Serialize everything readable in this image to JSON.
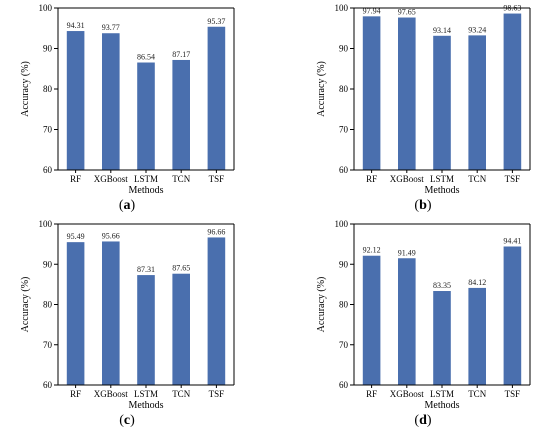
{
  "figure": {
    "bar_color": "#4a6fae",
    "panels": [
      {
        "label_open": "(",
        "label_letter": "a",
        "label_close": ")"
      },
      {
        "label_open": "(",
        "label_letter": "b",
        "label_close": ")"
      },
      {
        "label_open": "(",
        "label_letter": "c",
        "label_close": ")"
      },
      {
        "label_open": "(",
        "label_letter": "d",
        "label_close": ")"
      }
    ]
  },
  "chart_data": [
    {
      "type": "bar",
      "categories": [
        "RF",
        "XGBoost",
        "LSTM",
        "TCN",
        "TSF"
      ],
      "values": [
        94.31,
        93.77,
        86.54,
        87.17,
        95.37
      ],
      "data_labels": [
        "94.31",
        "93.77",
        "86.54",
        "87.17",
        "95.37"
      ],
      "xlabel": "Methods",
      "ylabel": "Accuracy (%)",
      "ylim": [
        60,
        100
      ],
      "yticks": [
        60,
        70,
        80,
        90,
        100
      ],
      "grid": false
    },
    {
      "type": "bar",
      "categories": [
        "RF",
        "XGBoost",
        "LSTM",
        "TCN",
        "TSF"
      ],
      "values": [
        97.94,
        97.65,
        93.14,
        93.24,
        98.63
      ],
      "data_labels": [
        "97.94",
        "97.65",
        "93.14",
        "93.24",
        "98.63"
      ],
      "xlabel": "Methods",
      "ylabel": "Accuracy (%)",
      "ylim": [
        60,
        100
      ],
      "yticks": [
        60,
        70,
        80,
        90,
        100
      ],
      "grid": false
    },
    {
      "type": "bar",
      "categories": [
        "RF",
        "XGBoost",
        "LSTM",
        "TCN",
        "TSF"
      ],
      "values": [
        95.49,
        95.66,
        87.31,
        87.65,
        96.66
      ],
      "data_labels": [
        "95.49",
        "95.66",
        "87.31",
        "87.65",
        "96.66"
      ],
      "xlabel": "Methods",
      "ylabel": "Accuracy (%)",
      "ylim": [
        60,
        100
      ],
      "yticks": [
        60,
        70,
        80,
        90,
        100
      ],
      "grid": false
    },
    {
      "type": "bar",
      "categories": [
        "RF",
        "XGBoost",
        "LSTM",
        "TCN",
        "TSF"
      ],
      "values": [
        92.12,
        91.49,
        83.35,
        84.12,
        94.41
      ],
      "data_labels": [
        "92.12",
        "91.49",
        "83.35",
        "84.12",
        "94.41"
      ],
      "xlabel": "Methods",
      "ylabel": "Accuracy (%)",
      "ylim": [
        60,
        100
      ],
      "yticks": [
        60,
        70,
        80,
        90,
        100
      ],
      "grid": false
    }
  ]
}
